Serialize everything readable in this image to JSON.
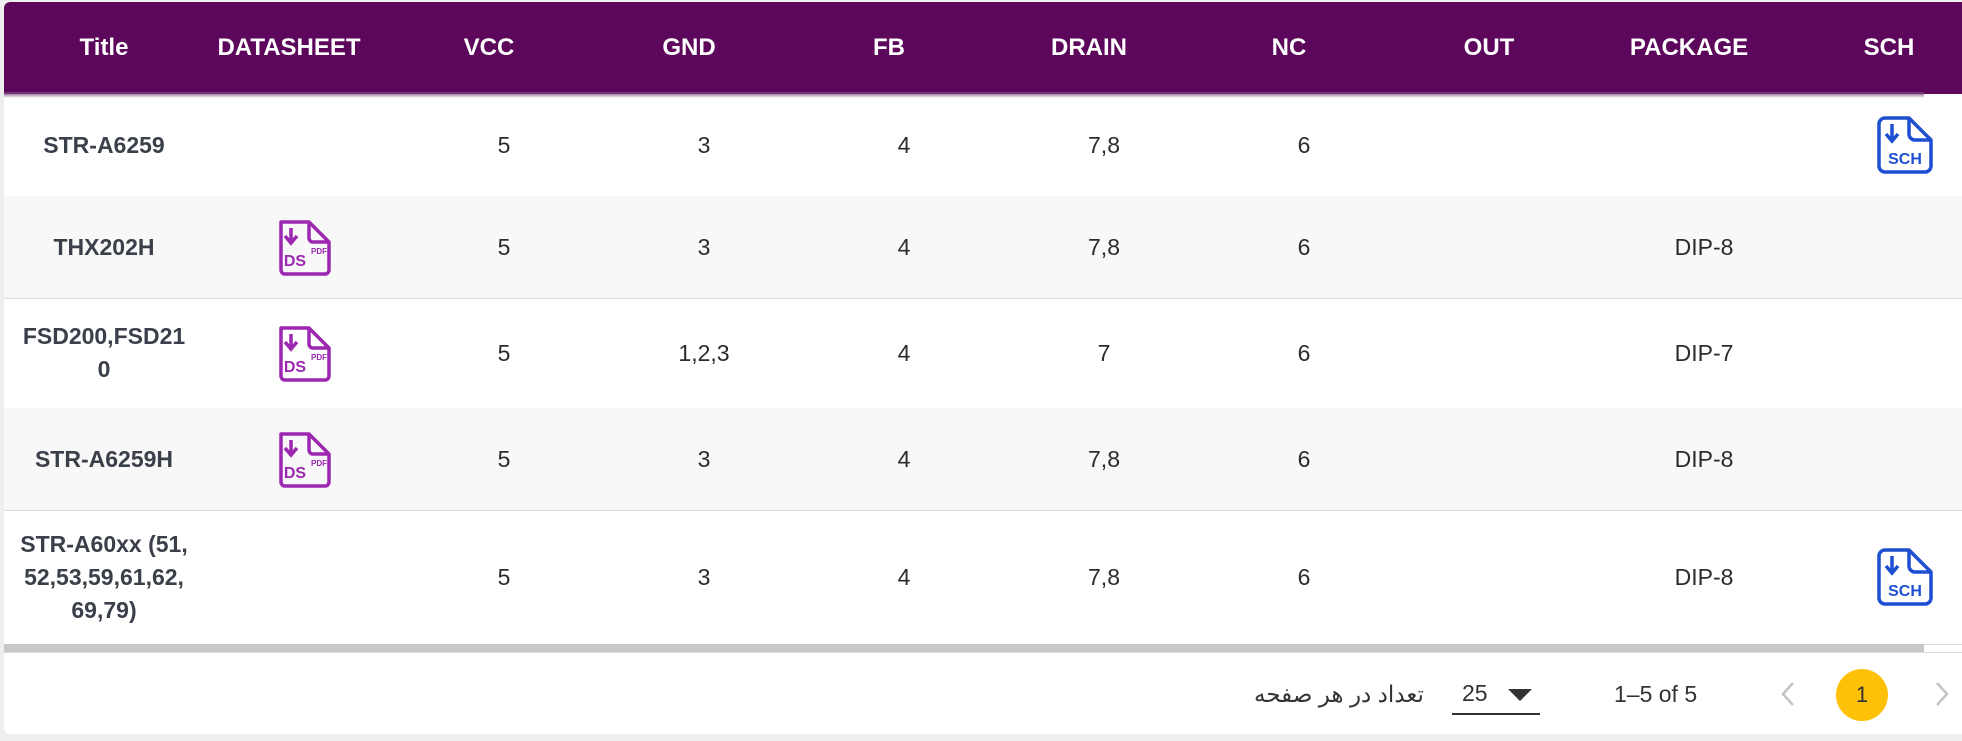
{
  "table": {
    "headers": [
      "Title",
      "DATASHEET",
      "VCC",
      "GND",
      "FB",
      "DRAIN",
      "NC",
      "OUT",
      "PACKAGE",
      "SCH"
    ],
    "rows": [
      {
        "title": "STR-A6259",
        "datasheet": false,
        "vcc": "5",
        "gnd": "3",
        "fb": "4",
        "drain": "7,8",
        "nc": "6",
        "out": "",
        "package": "",
        "sch": true
      },
      {
        "title": "THX202H",
        "datasheet": true,
        "vcc": "5",
        "gnd": "3",
        "fb": "4",
        "drain": "7,8",
        "nc": "6",
        "out": "",
        "package": "DIP-8",
        "sch": false
      },
      {
        "title": "FSD200,FSD210",
        "datasheet": true,
        "vcc": "5",
        "gnd": "1,2,3",
        "fb": "4",
        "drain": "7",
        "nc": "6",
        "out": "",
        "package": "DIP-7",
        "sch": false
      },
      {
        "title": "STR-A6259H",
        "datasheet": true,
        "vcc": "5",
        "gnd": "3",
        "fb": "4",
        "drain": "7,8",
        "nc": "6",
        "out": "",
        "package": "DIP-8",
        "sch": false
      },
      {
        "title": "STR-A60xx (51,52,53,59,61,62,69,79)",
        "datasheet": false,
        "vcc": "5",
        "gnd": "3",
        "fb": "4",
        "drain": "7,8",
        "nc": "6",
        "out": "",
        "package": "DIP-8",
        "sch": true
      }
    ]
  },
  "icons": {
    "datasheet": {
      "name": "pdf-datasheet-download-icon",
      "text_main": "DS",
      "text_small": "PDF",
      "color": "#9c27b0"
    },
    "schematic": {
      "name": "schematic-download-icon",
      "text_main": "SCH",
      "color": "#1e4fd0"
    }
  },
  "footer": {
    "rows_per_page_label": "تعداد در هر صفحه",
    "rows_per_page_value": "25",
    "range_text": "1–5 of 5",
    "current_page": "1",
    "prev_icon": "chevron-left-icon",
    "next_icon": "chevron-right-icon"
  },
  "colors": {
    "header_bg": "#5d075c",
    "active_page": "#ffc107"
  }
}
